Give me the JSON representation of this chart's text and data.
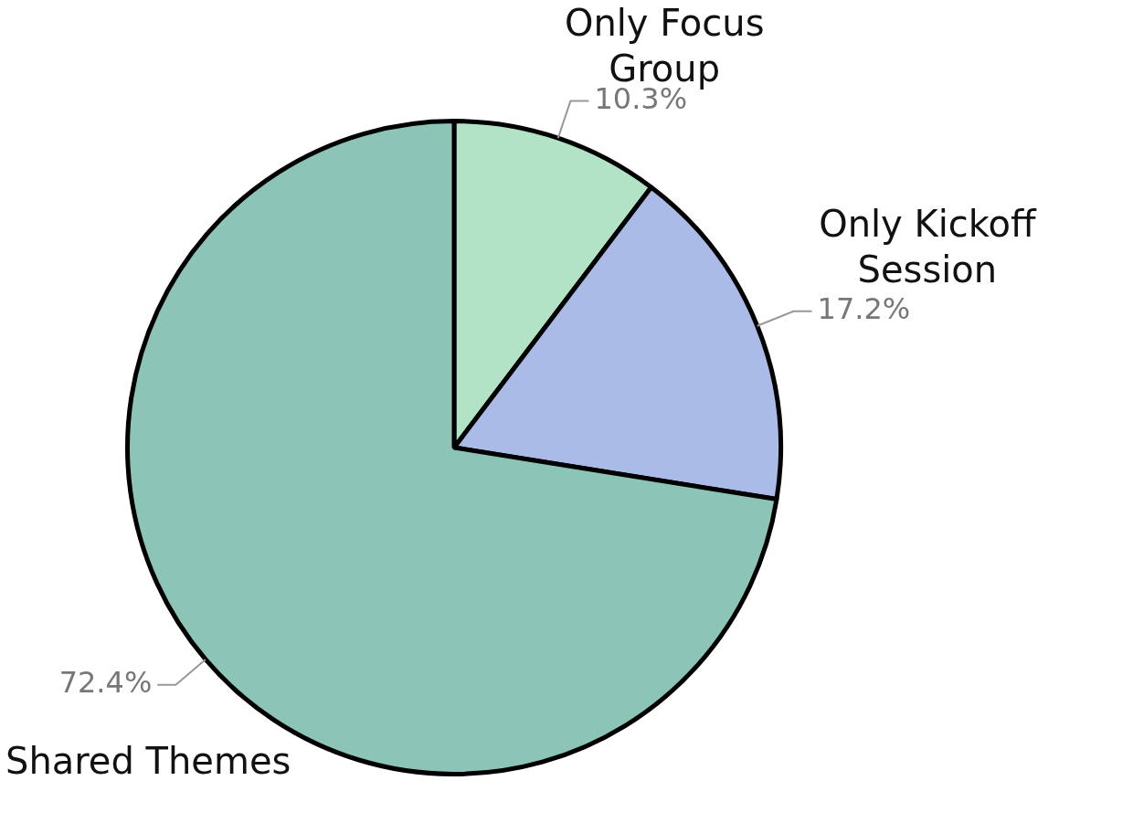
{
  "chart_data": {
    "type": "pie",
    "categories": [
      "Only Focus Group",
      "Only Kickoff Session",
      "Shared Themes"
    ],
    "values": [
      10.3,
      17.2,
      72.4
    ],
    "colors": [
      "#b3e3c7",
      "#a9bbe6",
      "#8cc4b8"
    ],
    "value_labels": [
      "10.3%",
      "17.2%",
      "72.4%"
    ],
    "legend": false
  }
}
